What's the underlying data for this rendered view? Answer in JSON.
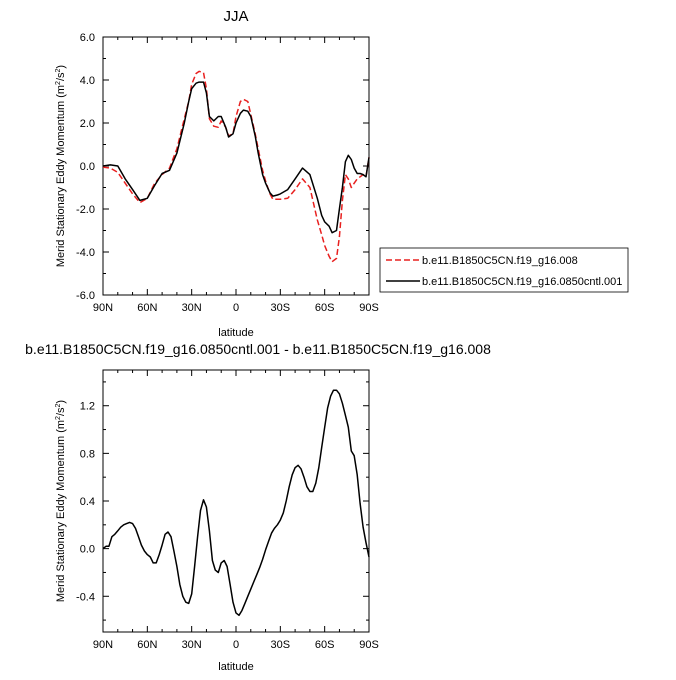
{
  "chart_data": [
    {
      "type": "line",
      "title": "JJA",
      "xlabel": "latitude",
      "ylabel": "Merid Stationary Eddy Momentum (m²/s²)",
      "ylabel_main": "Merid Stationary Eddy Momentum (m",
      "ylabel_mid": "/s",
      "ylabel_end": ")",
      "ylabel_sup": "2",
      "xlim": [
        90,
        -90
      ],
      "ylim": [
        -6,
        6
      ],
      "x_ticks": [
        90,
        60,
        30,
        0,
        -30,
        -60,
        -90
      ],
      "x_tick_labels": [
        "90N",
        "60N",
        "30N",
        "0",
        "30S",
        "60S",
        "90S"
      ],
      "y_ticks": [
        -6,
        -4,
        -2,
        0,
        2,
        4,
        6
      ],
      "y_tick_labels": [
        "-6.0",
        "-4.0",
        "-2.0",
        "0.0",
        "2.0",
        "4.0",
        "6.0"
      ],
      "legend": "right, outside plot",
      "grid": false,
      "series": [
        {
          "name": "b.e11.B1850C5CN.f19_g16.008",
          "color": "#e8201f",
          "style": "dashed",
          "x": [
            90,
            85,
            80,
            75,
            70,
            65,
            60,
            55,
            50,
            45,
            40,
            35,
            32,
            30,
            27,
            25,
            22,
            20,
            18,
            15,
            12,
            10,
            7,
            5,
            2,
            0,
            -3,
            -5,
            -8,
            -10,
            -13,
            -15,
            -18,
            -20,
            -23,
            -25,
            -28,
            -30,
            -35,
            -40,
            -45,
            -50,
            -55,
            -58,
            -60,
            -63,
            -65,
            -68,
            -70,
            -72,
            -74,
            -76,
            -78,
            -80,
            -82,
            -84,
            -86,
            -88,
            -90
          ],
          "y": [
            -0.05,
            -0.1,
            -0.3,
            -0.8,
            -1.3,
            -1.7,
            -1.5,
            -0.8,
            -0.4,
            -0.1,
            0.8,
            2.2,
            3.0,
            3.8,
            4.3,
            4.4,
            4.35,
            3.6,
            2.2,
            1.85,
            1.8,
            2.1,
            1.8,
            1.4,
            1.5,
            2.3,
            3.0,
            3.1,
            3.0,
            2.4,
            1.5,
            0.8,
            -0.2,
            -0.7,
            -1.3,
            -1.55,
            -1.55,
            -1.55,
            -1.5,
            -1.1,
            -0.6,
            -1.0,
            -2.5,
            -3.2,
            -3.7,
            -4.2,
            -4.45,
            -4.3,
            -3.3,
            -1.6,
            -0.4,
            -0.6,
            -1.0,
            -0.8,
            -0.6,
            -0.5,
            -0.4,
            -0.5,
            0.4
          ]
        },
        {
          "name": "b.e11.B1850C5CN.f19_g16.0850cntl.001",
          "color": "#000000",
          "style": "solid",
          "x": [
            90,
            85,
            80,
            75,
            70,
            65,
            60,
            55,
            50,
            45,
            40,
            35,
            32,
            30,
            27,
            25,
            22,
            20,
            18,
            15,
            12,
            10,
            7,
            5,
            2,
            0,
            -3,
            -5,
            -8,
            -10,
            -13,
            -15,
            -18,
            -20,
            -23,
            -25,
            -28,
            -30,
            -35,
            -40,
            -45,
            -50,
            -55,
            -58,
            -60,
            -63,
            -65,
            -68,
            -70,
            -72,
            -74,
            -76,
            -78,
            -80,
            -82,
            -84,
            -86,
            -88,
            -90
          ],
          "y": [
            0.0,
            0.05,
            0.0,
            -0.6,
            -1.1,
            -1.6,
            -1.5,
            -0.9,
            -0.35,
            -0.2,
            0.6,
            2.0,
            3.0,
            3.6,
            3.85,
            3.9,
            3.9,
            3.4,
            2.3,
            2.1,
            2.3,
            2.3,
            1.8,
            1.35,
            1.5,
            2.0,
            2.45,
            2.6,
            2.55,
            2.3,
            1.4,
            0.6,
            -0.4,
            -0.8,
            -1.25,
            -1.4,
            -1.35,
            -1.3,
            -1.1,
            -0.6,
            -0.1,
            -0.4,
            -1.5,
            -2.3,
            -2.6,
            -2.8,
            -3.1,
            -3.0,
            -2.0,
            -1.0,
            0.2,
            0.5,
            0.3,
            -0.1,
            -0.35,
            -0.35,
            -0.4,
            -0.5,
            0.4
          ]
        }
      ]
    },
    {
      "type": "line",
      "title": "b.e11.B1850C5CN.f19_g16.0850cntl.001 - b.e11.B1850C5CN.f19_g16.008",
      "xlabel": "latitude",
      "ylabel": "Merid Stationary Eddy Momentum (m²/s²)",
      "ylabel_main": "Merid Stationary Eddy Momentum (m",
      "ylabel_mid": "/s",
      "ylabel_end": ")",
      "ylabel_sup": "2",
      "xlim": [
        90,
        -90
      ],
      "ylim": [
        -0.7,
        1.5
      ],
      "x_ticks": [
        90,
        60,
        30,
        0,
        -30,
        -60,
        -90
      ],
      "x_tick_labels": [
        "90N",
        "60N",
        "30N",
        "0",
        "30S",
        "60S",
        "90S"
      ],
      "y_ticks": [
        -0.4,
        0.0,
        0.4,
        0.8,
        1.2
      ],
      "y_tick_labels": [
        "-0.4",
        "0.0",
        "0.4",
        "0.8",
        "1.2"
      ],
      "grid": false,
      "series": [
        {
          "color": "#000000",
          "style": "solid",
          "x": [
            90,
            88,
            86,
            84,
            82,
            80,
            78,
            76,
            74,
            72,
            70,
            68,
            66,
            64,
            62,
            60,
            58,
            56,
            54,
            52,
            50,
            48,
            46,
            44,
            42,
            40,
            38,
            36,
            34,
            32,
            30,
            28,
            26,
            24,
            22,
            20,
            18,
            16,
            14,
            12,
            10,
            8,
            6,
            4,
            2,
            0,
            -2,
            -4,
            -6,
            -8,
            -10,
            -12,
            -14,
            -16,
            -18,
            -20,
            -22,
            -24,
            -26,
            -28,
            -30,
            -32,
            -34,
            -36,
            -38,
            -40,
            -42,
            -44,
            -46,
            -48,
            -50,
            -52,
            -54,
            -56,
            -58,
            -60,
            -62,
            -64,
            -66,
            -68,
            -70,
            -72,
            -74,
            -76,
            -78,
            -80,
            -82,
            -84,
            -86,
            -88,
            -90
          ],
          "y": [
            0.0,
            0.02,
            0.02,
            0.1,
            0.12,
            0.15,
            0.18,
            0.2,
            0.21,
            0.22,
            0.21,
            0.17,
            0.1,
            0.03,
            -0.02,
            -0.05,
            -0.07,
            -0.12,
            -0.12,
            -0.05,
            0.03,
            0.12,
            0.14,
            0.1,
            -0.02,
            -0.15,
            -0.3,
            -0.4,
            -0.45,
            -0.46,
            -0.38,
            -0.15,
            0.1,
            0.32,
            0.41,
            0.35,
            0.15,
            -0.1,
            -0.18,
            -0.2,
            -0.12,
            -0.1,
            -0.15,
            -0.3,
            -0.45,
            -0.54,
            -0.56,
            -0.52,
            -0.46,
            -0.4,
            -0.34,
            -0.28,
            -0.22,
            -0.16,
            -0.09,
            -0.01,
            0.06,
            0.13,
            0.17,
            0.2,
            0.24,
            0.3,
            0.4,
            0.52,
            0.62,
            0.68,
            0.7,
            0.67,
            0.6,
            0.52,
            0.48,
            0.48,
            0.55,
            0.68,
            0.85,
            1.02,
            1.18,
            1.28,
            1.33,
            1.33,
            1.3,
            1.22,
            1.12,
            1.02,
            0.82,
            0.78,
            0.62,
            0.38,
            0.18,
            0.05,
            -0.07
          ]
        }
      ]
    }
  ]
}
